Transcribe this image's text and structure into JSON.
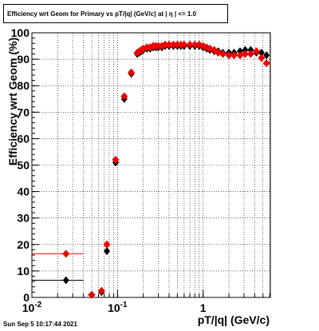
{
  "title": "Efficiency wrt Geom for Primary vs pT/|q| (GeV/c) at |  η | <= 1.0",
  "footer": "Sun Sep  5 10:17:44 2021",
  "chart_data": {
    "type": "scatter",
    "title": "Efficiency wrt Geom for Primary vs pT/|q| (GeV/c) at |  η | <= 1.0",
    "xlabel": "pT/|q| (GeV/c)",
    "ylabel": "Efficiency wrt Geom (%)",
    "xscale": "log",
    "xlim": [
      0.01,
      6.1
    ],
    "ylim": [
      0,
      100
    ],
    "grid": true,
    "x_ticks": [
      {
        "value": 0.01,
        "label": "10",
        "sup": "-2"
      },
      {
        "value": 0.1,
        "label": "10",
        "sup": "-1"
      },
      {
        "value": 1,
        "label": "1",
        "sup": ""
      }
    ],
    "y_ticks": [
      0,
      10,
      20,
      30,
      40,
      50,
      60,
      70,
      80,
      90,
      100
    ],
    "series": [
      {
        "color": "#000000",
        "marker": "diamond",
        "points": [
          {
            "x": 0.025,
            "y": 6.5,
            "xlo": 0.01,
            "xhi": 0.04
          },
          {
            "x": 0.05,
            "y": 1,
            "xlo": 0.045,
            "xhi": 0.055
          },
          {
            "x": 0.065,
            "y": 2,
            "xlo": 0.06,
            "xhi": 0.07
          },
          {
            "x": 0.075,
            "y": 17.5,
            "xlo": 0.07,
            "xhi": 0.08
          },
          {
            "x": 0.095,
            "y": 51,
            "xlo": 0.088,
            "xhi": 0.105
          },
          {
            "x": 0.12,
            "y": 75,
            "xlo": 0.112,
            "xhi": 0.128
          },
          {
            "x": 0.145,
            "y": 84.5,
            "xlo": 0.138,
            "xhi": 0.152
          },
          {
            "x": 0.17,
            "y": 92
          },
          {
            "x": 0.18,
            "y": 92.5
          },
          {
            "x": 0.19,
            "y": 93
          },
          {
            "x": 0.2,
            "y": 93.5
          },
          {
            "x": 0.22,
            "y": 94
          },
          {
            "x": 0.24,
            "y": 94
          },
          {
            "x": 0.26,
            "y": 94.5
          },
          {
            "x": 0.28,
            "y": 94.5
          },
          {
            "x": 0.3,
            "y": 94.5
          },
          {
            "x": 0.33,
            "y": 94.5
          },
          {
            "x": 0.36,
            "y": 95
          },
          {
            "x": 0.4,
            "y": 95
          },
          {
            "x": 0.45,
            "y": 95
          },
          {
            "x": 0.5,
            "y": 95
          },
          {
            "x": 0.55,
            "y": 95
          },
          {
            "x": 0.6,
            "y": 95
          },
          {
            "x": 0.7,
            "y": 95
          },
          {
            "x": 0.8,
            "y": 95
          },
          {
            "x": 0.9,
            "y": 95
          },
          {
            "x": 1.0,
            "y": 94.5
          },
          {
            "x": 1.1,
            "y": 94
          },
          {
            "x": 1.2,
            "y": 93.5
          },
          {
            "x": 1.35,
            "y": 93
          },
          {
            "x": 1.5,
            "y": 93
          },
          {
            "x": 1.7,
            "y": 92.5
          },
          {
            "x": 2.0,
            "y": 92.5
          },
          {
            "x": 2.3,
            "y": 92.5
          },
          {
            "x": 2.7,
            "y": 93
          },
          {
            "x": 3.1,
            "y": 93.5
          },
          {
            "x": 3.6,
            "y": 93.5
          },
          {
            "x": 4.2,
            "y": 92.5
          },
          {
            "x": 4.8,
            "y": 92.5
          },
          {
            "x": 5.5,
            "y": 91.5
          }
        ]
      },
      {
        "color": "#ee0000",
        "marker": "circle",
        "points": [
          {
            "x": 0.025,
            "y": 16.5,
            "xlo": 0.01,
            "xhi": 0.04
          },
          {
            "x": 0.05,
            "y": 1,
            "xlo": 0.045,
            "xhi": 0.055
          },
          {
            "x": 0.065,
            "y": 2.5,
            "xlo": 0.06,
            "xhi": 0.07
          },
          {
            "x": 0.075,
            "y": 20,
            "xlo": 0.07,
            "xhi": 0.08
          },
          {
            "x": 0.095,
            "y": 52,
            "xlo": 0.088,
            "xhi": 0.105
          },
          {
            "x": 0.12,
            "y": 76,
            "xlo": 0.112,
            "xhi": 0.128
          },
          {
            "x": 0.145,
            "y": 85,
            "xlo": 0.138,
            "xhi": 0.152
          },
          {
            "x": 0.17,
            "y": 92.5
          },
          {
            "x": 0.18,
            "y": 93
          },
          {
            "x": 0.19,
            "y": 93.5
          },
          {
            "x": 0.2,
            "y": 94
          },
          {
            "x": 0.22,
            "y": 94.5
          },
          {
            "x": 0.24,
            "y": 94.5
          },
          {
            "x": 0.26,
            "y": 95
          },
          {
            "x": 0.28,
            "y": 95
          },
          {
            "x": 0.3,
            "y": 95
          },
          {
            "x": 0.33,
            "y": 95
          },
          {
            "x": 0.36,
            "y": 95.5
          },
          {
            "x": 0.4,
            "y": 95.5
          },
          {
            "x": 0.45,
            "y": 95.5
          },
          {
            "x": 0.5,
            "y": 95.5
          },
          {
            "x": 0.55,
            "y": 95.5
          },
          {
            "x": 0.6,
            "y": 95.5
          },
          {
            "x": 0.7,
            "y": 95.5
          },
          {
            "x": 0.8,
            "y": 95.5
          },
          {
            "x": 0.9,
            "y": 95.5
          },
          {
            "x": 1.0,
            "y": 95
          },
          {
            "x": 1.1,
            "y": 94.5
          },
          {
            "x": 1.2,
            "y": 94
          },
          {
            "x": 1.35,
            "y": 93.5
          },
          {
            "x": 1.5,
            "y": 92.5
          },
          {
            "x": 1.7,
            "y": 92
          },
          {
            "x": 2.0,
            "y": 91.5
          },
          {
            "x": 2.3,
            "y": 91.5
          },
          {
            "x": 2.7,
            "y": 91.5
          },
          {
            "x": 3.1,
            "y": 92
          },
          {
            "x": 3.6,
            "y": 92
          },
          {
            "x": 4.2,
            "y": 93
          },
          {
            "x": 4.8,
            "y": 90.5
          },
          {
            "x": 5.5,
            "y": 88.5
          }
        ]
      }
    ]
  }
}
